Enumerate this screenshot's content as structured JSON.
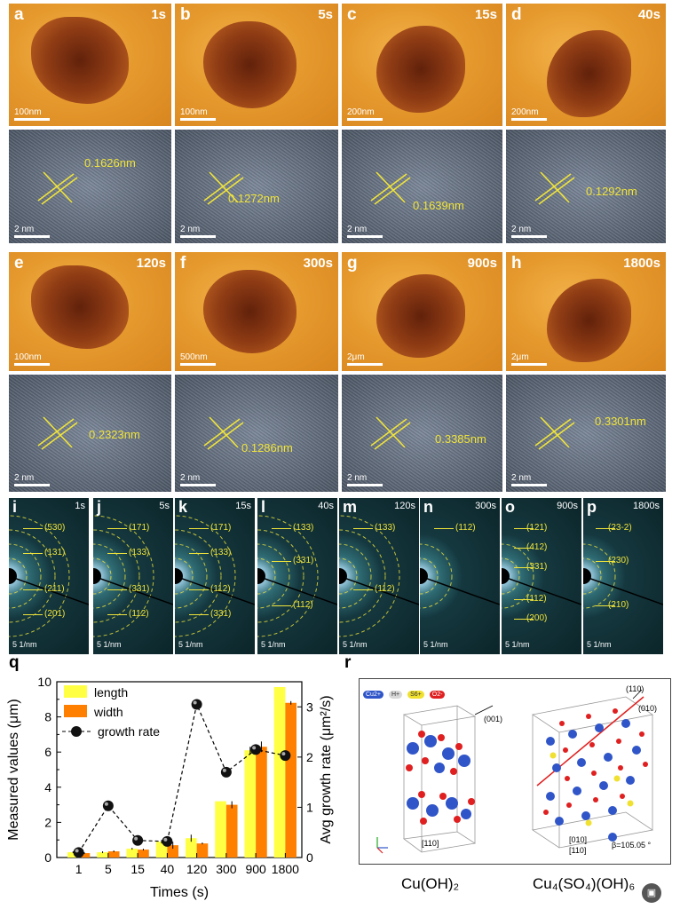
{
  "tem_panels": [
    {
      "letter": "a",
      "time": "1s",
      "scale": "100nm"
    },
    {
      "letter": "b",
      "time": "5s",
      "scale": "100nm"
    },
    {
      "letter": "c",
      "time": "15s",
      "scale": "200nm"
    },
    {
      "letter": "d",
      "time": "40s",
      "scale": "200nm"
    },
    {
      "letter": "e",
      "time": "120s",
      "scale": "100nm"
    },
    {
      "letter": "f",
      "time": "300s",
      "scale": "500nm"
    },
    {
      "letter": "g",
      "time": "900s",
      "scale": "2μm"
    },
    {
      "letter": "h",
      "time": "1800s",
      "scale": "2μm"
    }
  ],
  "hrtem_panels": [
    {
      "d": "0.1626nm",
      "scale": "2 nm"
    },
    {
      "d": "0.1272nm",
      "scale": "2 nm"
    },
    {
      "d": "0.1639nm",
      "scale": "2 nm"
    },
    {
      "d": "0.1292nm",
      "scale": "2 nm"
    },
    {
      "d": "0.2323nm",
      "scale": "2 nm"
    },
    {
      "d": "0.1286nm",
      "scale": "2 nm"
    },
    {
      "d": "0.3385nm",
      "scale": "2 nm"
    },
    {
      "d": "0.3301nm",
      "scale": "2 nm"
    }
  ],
  "saed_panels": [
    {
      "letter": "i",
      "time": "1s",
      "scale": "5 1/nm",
      "labels": [
        "(530)",
        "(131)",
        "(211)",
        "(201)"
      ]
    },
    {
      "letter": "j",
      "time": "5s",
      "scale": "5 1/nm",
      "labels": [
        "(171)",
        "(133)",
        "(331)",
        "(112)"
      ]
    },
    {
      "letter": "k",
      "time": "15s",
      "scale": "5 1/nm",
      "labels": [
        "(171)",
        "(133)",
        "(112)",
        "(331)"
      ]
    },
    {
      "letter": "l",
      "time": "40s",
      "scale": "5 1/nm",
      "labels": [
        "(133)",
        "(331)",
        "(112)"
      ]
    },
    {
      "letter": "m",
      "time": "120s",
      "scale": "5 1/nm",
      "labels": [
        "(133)",
        "(112)"
      ]
    },
    {
      "letter": "n",
      "time": "300s",
      "scale": "5 1/nm",
      "labels": [
        "(112)"
      ]
    },
    {
      "letter": "o",
      "time": "900s",
      "scale": "5 1/nm",
      "labels": [
        "(121)",
        "(412)",
        "(331)",
        "(112)",
        "(200)"
      ]
    },
    {
      "letter": "p",
      "time": "1800s",
      "scale": "5 1/nm",
      "labels": [
        "(23-2)",
        "(230)",
        "(210)"
      ]
    }
  ],
  "panel_q": {
    "letter": "q"
  },
  "panel_r": {
    "letter": "r",
    "legend": [
      "Cu2+",
      "H+",
      "S6+",
      "O2-"
    ],
    "legend_colors": [
      "#2f55c8",
      "#d8d8d8",
      "#f0e030",
      "#e02020"
    ],
    "left_dir": "(001)",
    "left_axis": "[110]",
    "right_dirs": [
      "(110)",
      "(010)"
    ],
    "right_axes": [
      "[010]",
      "[110]"
    ],
    "beta": "β=105.05 °",
    "caption_left": "Cu(OH)₂",
    "caption_right": "Cu₄(SO₄)(OH)₆"
  },
  "chart_data": {
    "type": "bar",
    "categories": [
      "1",
      "5",
      "15",
      "40",
      "120",
      "300",
      "900",
      "1800"
    ],
    "xlabel": "Times (s)",
    "ylabel": "Measured values (μm)",
    "y2label": "Avg growth rate (μm²/s)",
    "ylim": [
      0,
      10
    ],
    "y2lim": [
      0,
      3.5
    ],
    "series": [
      {
        "name": "length",
        "color": "#ffff44",
        "values": [
          0.3,
          0.3,
          0.5,
          0.9,
          1.1,
          3.2,
          6.1,
          9.7
        ],
        "errors": [
          0.05,
          0.05,
          0.05,
          0.1,
          0.2,
          0,
          0.2,
          0
        ]
      },
      {
        "name": "width",
        "color": "#ff8000",
        "values": [
          0.25,
          0.35,
          0.45,
          0.7,
          0.8,
          3.0,
          6.3,
          8.8
        ],
        "errors": [
          0.05,
          0.05,
          0.05,
          0.2,
          0.05,
          0.2,
          0.3,
          0.1
        ]
      },
      {
        "name": "growth rate",
        "color": "#000000",
        "values": [
          0.1,
          1.03,
          0.34,
          0.32,
          3.05,
          1.7,
          2.15,
          2.03
        ],
        "axis": "right"
      }
    ],
    "legend": "top-left"
  }
}
